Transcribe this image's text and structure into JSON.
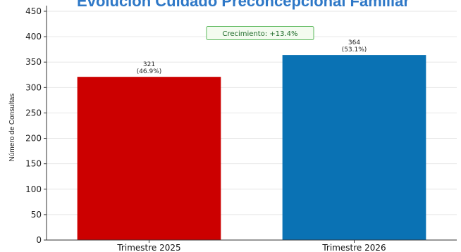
{
  "chart_data": {
    "type": "bar",
    "title": "Evolución Cuidado Preconcepcional Familiar",
    "ylabel": "Número de Consultas",
    "xlabel": "",
    "categories": [
      "Trimestre 2025",
      "Trimestre 2026"
    ],
    "values": [
      321,
      364
    ],
    "value_labels": [
      "321",
      "364"
    ],
    "percent_labels": [
      "(46.9%)",
      "(53.1%)"
    ],
    "colors": [
      "#cc0000",
      "#0a72b4"
    ],
    "ylim": [
      0,
      450
    ],
    "yticks": [
      0,
      50,
      100,
      150,
      200,
      250,
      300,
      350,
      400,
      450
    ],
    "grid": true,
    "annotation": {
      "text": "Crecimiento: +13.4%",
      "border_color": "#5cb85c",
      "background": "#f3fbef"
    }
  }
}
